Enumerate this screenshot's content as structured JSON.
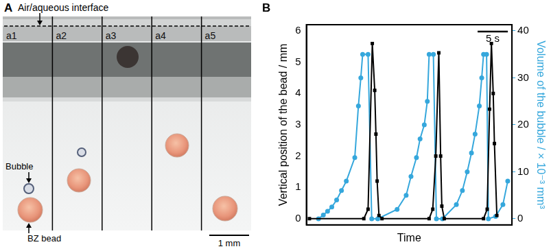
{
  "panel_a": {
    "panel_label": "A",
    "interface_label": "Air/aqueous interface",
    "frames": [
      "a1",
      "a2",
      "a3",
      "a4",
      "a5"
    ],
    "bubble_label": "Bubble",
    "bead_label": "BZ bead",
    "scale_bar_label": "1 mm"
  },
  "chart_data": {
    "type": "line",
    "panel_label": "B",
    "x_label": "Time",
    "y_label": "Vertical position of the bead / mm",
    "y2_label": "Volume of the bubble / × 10⁻³ mm³",
    "xlim": [
      0,
      34
    ],
    "xticks": [],
    "ylim": [
      -0.2,
      6.2
    ],
    "yticks": [
      0,
      1,
      2,
      3,
      4,
      5,
      6
    ],
    "y2lim": [
      -1.3,
      41.3
    ],
    "y2ticks": [
      0,
      10,
      20,
      30,
      40
    ],
    "tick_labels": "y",
    "grid": false,
    "scale_bar": {
      "value": 5,
      "label": "5 s"
    },
    "series": [
      {
        "color": "#000000",
        "marker": "square",
        "axis": "y",
        "x": [
          0.5,
          9.5,
          10.2,
          10.9,
          11.3,
          11.5,
          11.7,
          12.0,
          12.5,
          20.3,
          20.9,
          21.4,
          21.9,
          22.2,
          22.4,
          22.8,
          29.3,
          29.9,
          30.3,
          30.6,
          30.9,
          31.1,
          31.5
        ],
        "values": [
          0,
          0,
          0.3,
          5.6,
          4.1,
          2.7,
          1.2,
          0.1,
          0,
          0,
          0.3,
          2.0,
          5.3,
          2.0,
          0.4,
          0,
          0,
          0.3,
          3.5,
          5.6,
          4.0,
          2.4,
          0.1
        ]
      },
      {
        "color": "#35a7dc",
        "marker": "circle",
        "axis": "y2",
        "x": [
          2.0,
          2.8,
          3.5,
          4.2,
          5.0,
          5.8,
          6.6,
          8.0,
          8.6,
          9.0,
          9.3,
          10.2,
          10.8,
          11.8,
          15.0,
          16.5,
          17.3,
          18.2,
          18.8,
          19.5,
          20.0,
          20.3,
          21.0,
          21.5,
          22.5,
          24.8,
          25.8,
          26.6,
          27.3,
          27.9,
          28.6,
          29.0,
          29.3,
          29.8,
          30.1,
          31.3,
          32.5,
          33.3
        ],
        "values": [
          0,
          0.8,
          1.6,
          2.5,
          4,
          6,
          8,
          13,
          24,
          30,
          35,
          35,
          0,
          0,
          2,
          5,
          9,
          13,
          17,
          20,
          25,
          35,
          35,
          0,
          0,
          3,
          6,
          10,
          14,
          18,
          24,
          30,
          35,
          35,
          0,
          0.5,
          3,
          8
        ]
      }
    ]
  }
}
